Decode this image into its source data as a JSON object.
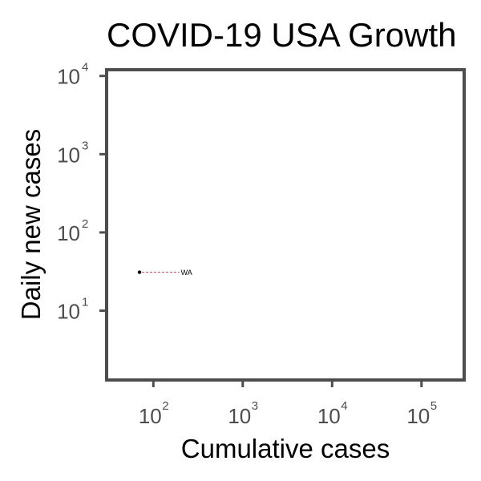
{
  "chart_data": {
    "type": "scatter",
    "title": "COVID-19 USA Growth",
    "xlabel": "Cumulative cases",
    "ylabel": "Daily new cases",
    "x_scale": "log10",
    "y_scale": "log10",
    "xlim": [
      30,
      300000
    ],
    "ylim": [
      1.3,
      12000
    ],
    "x_ticks": [
      {
        "base": "10",
        "exp": "2",
        "value": 100
      },
      {
        "base": "10",
        "exp": "3",
        "value": 1000
      },
      {
        "base": "10",
        "exp": "4",
        "value": 10000
      },
      {
        "base": "10",
        "exp": "5",
        "value": 100000
      }
    ],
    "y_ticks": [
      {
        "base": "10",
        "exp": "1",
        "value": 10
      },
      {
        "base": "10",
        "exp": "2",
        "value": 100
      },
      {
        "base": "10",
        "exp": "3",
        "value": 1000
      },
      {
        "base": "10",
        "exp": "4",
        "value": 10000
      }
    ],
    "grid": false,
    "points": [
      {
        "label": "WA",
        "x": 70,
        "y": 31,
        "label_x": 230
      }
    ],
    "colors": {
      "point": "#000000",
      "leader_line": "#c0304a",
      "panel_border": "#4d4d4d",
      "tick_text": "#4d4d4d"
    }
  }
}
